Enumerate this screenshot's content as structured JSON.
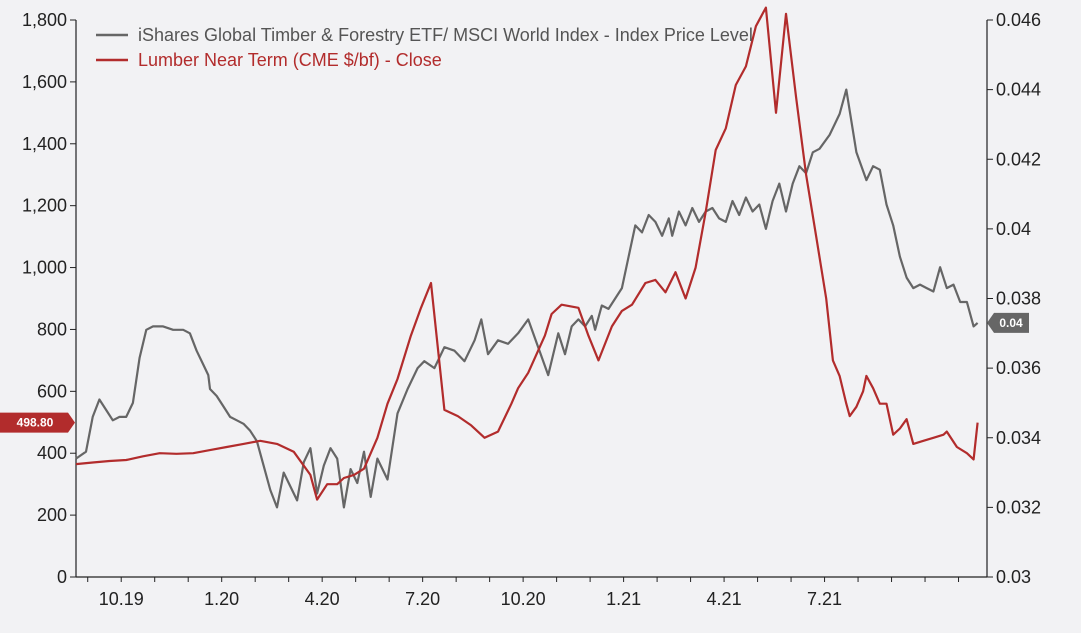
{
  "chart_data": {
    "type": "line",
    "title": "",
    "xlabel": "",
    "ylabel_left": "",
    "ylabel_right": "",
    "legend_position": "top-left",
    "grid": false,
    "x_tick_labels": [
      "10.19",
      "1.20",
      "4.20",
      "7.20",
      "10.20",
      "1.21",
      "4.21",
      "7.21"
    ],
    "y_left": {
      "range": [
        0,
        1800
      ],
      "ticks": [
        "0",
        "200",
        "400",
        "600",
        "800",
        "1,000",
        "1,200",
        "1,400",
        "1,600",
        "1,800"
      ]
    },
    "y_right": {
      "range": [
        0.03,
        0.046
      ],
      "ticks": [
        "0.03",
        "0.032",
        "0.034",
        "0.036",
        "0.038",
        "0.04",
        "0.042",
        "0.044",
        "0.046"
      ]
    },
    "series": [
      {
        "name": "iShares Global Timber & Forestry ETF/ MSCI World Index - Index Price Level",
        "axis": "right",
        "color": "#666666",
        "last_value_label": "0.04",
        "x": [
          0,
          0.3,
          0.5,
          0.7,
          0.9,
          1.1,
          1.3,
          1.5,
          1.7,
          1.9,
          2.1,
          2.3,
          2.6,
          2.9,
          3.2,
          3.4,
          3.6,
          3.8,
          3.95,
          4.0,
          4.2,
          4.4,
          4.6,
          4.8,
          5.0,
          5.2,
          5.4,
          5.6,
          5.8,
          6.0,
          6.2,
          6.4,
          6.6,
          6.8,
          7.0,
          7.2,
          7.4,
          7.6,
          7.8,
          8.0,
          8.2,
          8.4,
          8.6,
          8.8,
          9.0,
          9.3,
          9.6,
          9.9,
          10.2,
          10.4,
          10.7,
          11.0,
          11.3,
          11.6,
          11.9,
          12.1,
          12.3,
          12.6,
          12.9,
          13.2,
          13.5,
          13.8,
          14.1,
          14.4,
          14.6,
          14.8,
          15.0,
          15.2,
          15.4,
          15.5,
          15.7,
          15.9,
          16.1,
          16.3,
          16.5,
          16.7,
          16.9,
          17.1,
          17.3,
          17.5,
          17.7,
          17.8,
          18.0,
          18.2,
          18.4,
          18.6,
          18.8,
          19.0,
          19.2,
          19.4,
          19.6,
          19.8,
          20.0,
          20.2,
          20.4,
          20.6,
          20.8,
          21.0,
          21.2,
          21.4,
          21.6,
          21.8,
          22.0,
          22.2,
          22.5,
          22.8,
          23.0,
          23.3,
          23.6,
          23.8,
          24.0,
          24.2,
          24.4,
          24.6,
          24.8,
          25.0,
          25.2,
          25.4,
          25.6,
          25.8,
          26.0,
          26.2,
          26.4,
          26.6,
          26.8,
          26.92
        ],
        "values": [
          0.0334,
          0.0336,
          0.0346,
          0.0351,
          0.0348,
          0.0345,
          0.0346,
          0.0346,
          0.035,
          0.0363,
          0.0371,
          0.0372,
          0.0372,
          0.0371,
          0.0371,
          0.037,
          0.0365,
          0.0361,
          0.0358,
          0.0354,
          0.0352,
          0.0349,
          0.0346,
          0.0345,
          0.0344,
          0.0342,
          0.0339,
          0.0332,
          0.0325,
          0.032,
          0.033,
          0.0326,
          0.0322,
          0.0333,
          0.0337,
          0.0324,
          0.0332,
          0.0337,
          0.0334,
          0.032,
          0.0331,
          0.0327,
          0.0336,
          0.0323,
          0.0334,
          0.0328,
          0.0347,
          0.0354,
          0.036,
          0.0362,
          0.036,
          0.0366,
          0.0365,
          0.0362,
          0.0368,
          0.0374,
          0.0364,
          0.0368,
          0.0367,
          0.037,
          0.0374,
          0.0366,
          0.0358,
          0.037,
          0.0364,
          0.0372,
          0.0374,
          0.0372,
          0.0375,
          0.0371,
          0.0378,
          0.0377,
          0.038,
          0.0383,
          0.0392,
          0.0401,
          0.0399,
          0.0404,
          0.0402,
          0.0398,
          0.0403,
          0.0398,
          0.0405,
          0.0401,
          0.0406,
          0.0402,
          0.0405,
          0.0406,
          0.0403,
          0.0402,
          0.0408,
          0.0404,
          0.0409,
          0.0405,
          0.0407,
          0.04,
          0.0408,
          0.0413,
          0.0405,
          0.0413,
          0.0418,
          0.0416,
          0.0422,
          0.0423,
          0.0427,
          0.0433,
          0.044,
          0.0422,
          0.0414,
          0.0418,
          0.0417,
          0.0407,
          0.0401,
          0.0392,
          0.0386,
          0.0383,
          0.0384,
          0.0383,
          0.0382,
          0.0389,
          0.0383,
          0.0384,
          0.0379,
          0.0379,
          0.0372,
          0.0373
        ]
      },
      {
        "name": "Lumber Near Term (CME $/bf) - Close",
        "axis": "left",
        "color": "#b22c2c",
        "last_value_label": "498.80",
        "x": [
          0,
          0.5,
          1.0,
          1.5,
          2.0,
          2.5,
          3.0,
          3.5,
          4.0,
          4.5,
          5.0,
          5.5,
          6.0,
          6.5,
          7.0,
          7.2,
          7.5,
          7.8,
          8.0,
          8.3,
          8.6,
          9.0,
          9.3,
          9.6,
          10.0,
          10.3,
          10.6,
          11.0,
          11.4,
          11.8,
          12.2,
          12.6,
          13.0,
          13.2,
          13.5,
          14.0,
          14.2,
          14.5,
          15.0,
          15.3,
          15.6,
          16.0,
          16.3,
          16.6,
          17.0,
          17.3,
          17.6,
          17.9,
          18.2,
          18.5,
          18.8,
          19.1,
          19.4,
          19.7,
          20.0,
          20.3,
          20.6,
          20.9,
          21.2,
          21.5,
          21.8,
          22.1,
          22.4,
          22.6,
          22.8,
          23.0,
          23.1,
          23.3,
          23.5,
          23.6,
          23.8,
          24.0,
          24.2,
          24.4,
          24.6,
          24.8,
          25.0,
          25.3,
          25.6,
          25.9,
          26.0,
          26.3,
          26.6,
          26.8,
          26.92
        ],
        "values": [
          365,
          370,
          375,
          378,
          390,
          400,
          398,
          400,
          410,
          420,
          430,
          440,
          430,
          405,
          330,
          250,
          300,
          300,
          320,
          330,
          350,
          450,
          560,
          640,
          780,
          870,
          950,
          540,
          520,
          490,
          450,
          470,
          560,
          610,
          660,
          780,
          850,
          880,
          870,
          780,
          700,
          810,
          860,
          880,
          950,
          960,
          920,
          985,
          900,
          1000,
          1180,
          1380,
          1450,
          1590,
          1650,
          1780,
          1840,
          1500,
          1820,
          1550,
          1300,
          1100,
          900,
          700,
          650,
          560,
          520,
          550,
          600,
          650,
          610,
          560,
          560,
          460,
          480,
          510,
          430,
          440,
          450,
          460,
          470,
          420,
          400,
          380,
          498.8
        ]
      }
    ]
  }
}
